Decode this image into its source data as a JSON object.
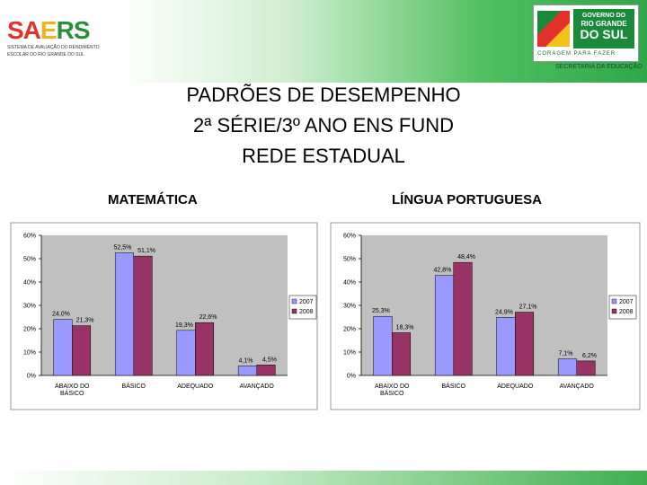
{
  "header": {
    "saers_logo": {
      "part1": "SA",
      "part2": "E",
      "part3": "RS",
      "subtitle_line1": "SISTEMA DE AVALIAÇÃO DO RENDIMENTO",
      "subtitle_line2": "ESCOLAR DO RIO GRANDE DO SUL"
    },
    "gov_logo": {
      "line1": "GOVERNO DO",
      "line2": "RIO GRANDE",
      "line3": "DO SUL",
      "slogan": "CORAGEM PARA FAZER"
    },
    "secretaria": "SECRETARIA DA EDUCAÇÃO"
  },
  "title": {
    "line1": "PADRÕES DE DESEMPENHO",
    "line2": "2ª SÉRIE/3º ANO ENS FUND",
    "line3": "REDE ESTADUAL"
  },
  "subjects": {
    "left": "MATEMÁTICA",
    "right": "LÍNGUA PORTUGUESA"
  },
  "colors": {
    "series_2007": "#9999ff",
    "series_2008": "#993366",
    "panel_bg": "#c0c0c0"
  },
  "chart_data": [
    {
      "type": "bar",
      "title": "MATEMÁTICA",
      "categories": [
        "ABAIXO DO BÁSICO",
        "BÁSICO",
        "ADEQUADO",
        "AVANÇADO"
      ],
      "series": [
        {
          "name": "2007",
          "values": [
            24.0,
            52.5,
            19.3,
            4.1
          ],
          "labels": [
            "24,0%",
            "52,5%",
            "19,3%",
            "4,1%"
          ]
        },
        {
          "name": "2008",
          "values": [
            21.3,
            51.1,
            22.6,
            4.5
          ],
          "labels": [
            "21,3%",
            "51,1%",
            "22,6%",
            "4,5%"
          ]
        }
      ],
      "yticks": [
        "0%",
        "10%",
        "20%",
        "30%",
        "40%",
        "50%",
        "60%"
      ],
      "ylim": [
        0,
        60
      ],
      "grid": false,
      "legend": "right"
    },
    {
      "type": "bar",
      "title": "LÍNGUA PORTUGUESA",
      "categories": [
        "ABAIXO DO BÁSICO",
        "BÁSICO",
        "ADEQUADO",
        "AVANÇADO"
      ],
      "series": [
        {
          "name": "2007",
          "values": [
            25.3,
            42.8,
            24.9,
            7.1
          ],
          "labels": [
            "25,3%",
            "42,8%",
            "24,9%",
            "7,1%"
          ]
        },
        {
          "name": "2008",
          "values": [
            18.3,
            48.4,
            27.1,
            6.2
          ],
          "labels": [
            "18,3%",
            "48,4%",
            "27,1%",
            "6,2%"
          ]
        }
      ],
      "yticks": [
        "0%",
        "10%",
        "20%",
        "30%",
        "40%",
        "50%",
        "60%"
      ],
      "ylim": [
        0,
        60
      ],
      "grid": false,
      "legend": "right"
    }
  ]
}
